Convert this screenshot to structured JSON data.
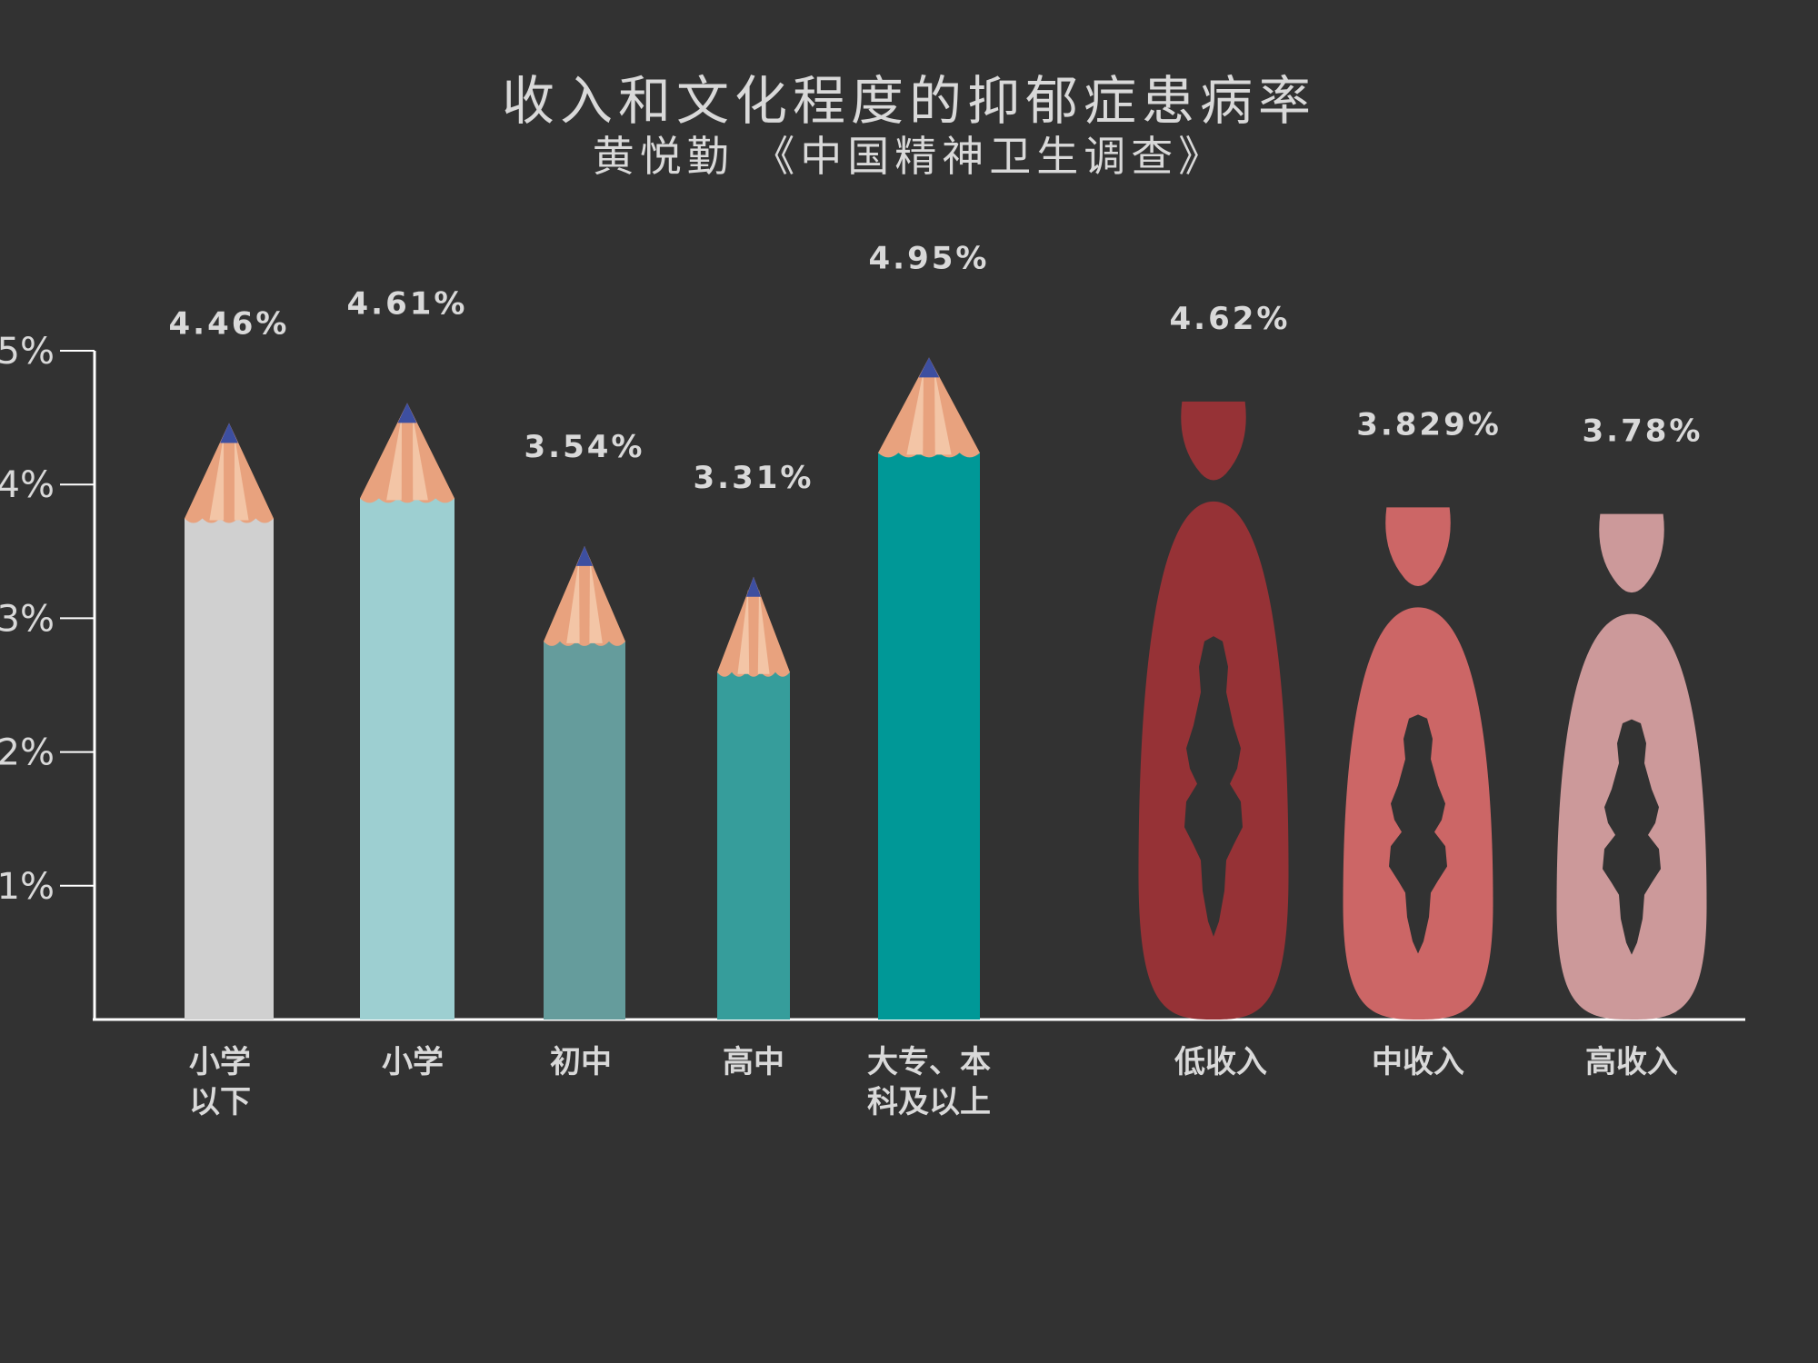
{
  "chart_data": {
    "type": "bar",
    "title": "收入和文化程度的抑郁症患病率",
    "subtitle": "黄悦勤 《中国精神卫生调查》",
    "ylim": [
      0,
      5
    ],
    "yticks": [
      "1%",
      "2%",
      "3%",
      "4%",
      "5%"
    ],
    "ytick_values": [
      1,
      2,
      3,
      4,
      5
    ],
    "grid": false,
    "series": [
      {
        "group": "文化程度",
        "style": "pencil",
        "categories": [
          "小学以下",
          "小学",
          "初中",
          "高中",
          "大专、本科及以上"
        ],
        "category_lines": [
          [
            "小学",
            "以下"
          ],
          [
            "小学"
          ],
          [
            "初中"
          ],
          [
            "高中"
          ],
          [
            "大专、本",
            "科及以上"
          ]
        ],
        "values": [
          4.46,
          4.61,
          3.54,
          3.31,
          4.95
        ],
        "labels": [
          "4.46%",
          "4.61%",
          "3.54%",
          "3.31%",
          "4.95%"
        ],
        "colors": [
          "#d0d0d0",
          "#9dcfd1",
          "#659c9c",
          "#369d9b",
          "#009897"
        ]
      },
      {
        "group": "收入",
        "style": "figure",
        "categories": [
          "低收入",
          "中收入",
          "高收入"
        ],
        "category_lines": [
          [
            "低收入"
          ],
          [
            "中收入"
          ],
          [
            "高收入"
          ]
        ],
        "values": [
          4.62,
          3.829,
          3.78
        ],
        "labels": [
          "4.62%",
          "3.829%",
          "3.78%"
        ],
        "colors": [
          "#963236",
          "#cc6666",
          "#cc999a"
        ]
      }
    ],
    "colors": {
      "background": "#323232",
      "axis": "#ffffff",
      "text": "#d9d9d9",
      "wood": "#e8a27e",
      "wood_light": "#f3c5a6",
      "lead": "#3d4fa0"
    }
  }
}
